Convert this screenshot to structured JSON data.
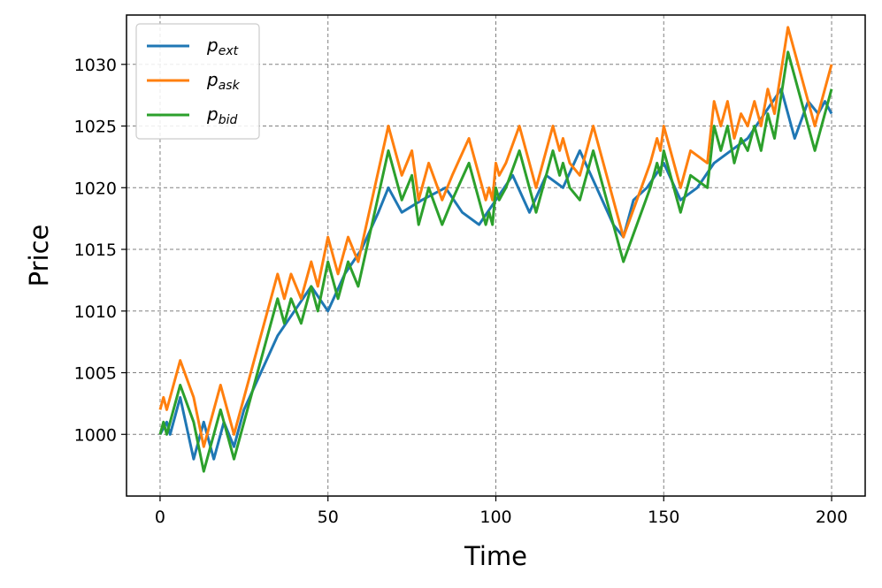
{
  "chart_data": {
    "type": "line",
    "title": "",
    "xlabel": "Time",
    "ylabel": "Price",
    "xlim": [
      -10,
      210
    ],
    "ylim": [
      995,
      1034
    ],
    "xticks": [
      0,
      50,
      100,
      150,
      200
    ],
    "yticks": [
      1000,
      1005,
      1010,
      1015,
      1020,
      1025,
      1030
    ],
    "grid": true,
    "legend": "top-left",
    "series": [
      {
        "name": "p",
        "subscript": "ext",
        "color": "#1f77b4",
        "x": [
          0,
          2,
          3,
          6,
          10,
          13,
          16,
          19,
          22,
          25,
          35,
          40,
          45,
          50,
          55,
          60,
          65,
          68,
          72,
          78,
          85,
          90,
          95,
          100,
          105,
          110,
          115,
          120,
          125,
          130,
          135,
          138,
          141,
          145,
          150,
          155,
          160,
          165,
          170,
          175,
          180,
          185,
          189,
          193,
          196,
          198,
          200
        ],
        "values": [
          1000,
          1001,
          1000,
          1003,
          998,
          1001,
          998,
          1001,
          999,
          1002,
          1008,
          1010,
          1012,
          1010,
          1013,
          1015,
          1018,
          1020,
          1018,
          1019,
          1020,
          1018,
          1017,
          1019,
          1021,
          1018,
          1021,
          1020,
          1023,
          1020,
          1017,
          1016,
          1019,
          1020,
          1022,
          1019,
          1020,
          1022,
          1023,
          1024,
          1026,
          1028,
          1024,
          1027,
          1026,
          1027,
          1026
        ]
      },
      {
        "name": "p",
        "subscript": "ask",
        "color": "#ff7f0e",
        "x": [
          0,
          1,
          2,
          6,
          10,
          13,
          18,
          22,
          35,
          37,
          39,
          42,
          45,
          47,
          50,
          53,
          56,
          59,
          68,
          72,
          75,
          77,
          80,
          84,
          87,
          92,
          97,
          98,
          99,
          100,
          101,
          103,
          107,
          112,
          117,
          119,
          120,
          122,
          125,
          129,
          138,
          146,
          148,
          149,
          150,
          153,
          155,
          158,
          163,
          165,
          167,
          169,
          171,
          173,
          175,
          177,
          179,
          181,
          183,
          187,
          195,
          200
        ],
        "values": [
          1002,
          1003,
          1002,
          1006,
          1003,
          999,
          1004,
          1000,
          1013,
          1011,
          1013,
          1011,
          1014,
          1012,
          1016,
          1013,
          1016,
          1014,
          1025,
          1021,
          1023,
          1019,
          1022,
          1019,
          1021,
          1024,
          1019,
          1020,
          1019,
          1022,
          1021,
          1022,
          1025,
          1020,
          1025,
          1023,
          1024,
          1022,
          1021,
          1025,
          1016,
          1022,
          1024,
          1023,
          1025,
          1022,
          1020,
          1023,
          1022,
          1027,
          1025,
          1027,
          1024,
          1026,
          1025,
          1027,
          1025,
          1028,
          1026,
          1033,
          1025,
          1030
        ]
      },
      {
        "name": "p",
        "subscript": "bid",
        "color": "#2ca02c",
        "x": [
          0,
          1,
          2,
          6,
          10,
          13,
          18,
          22,
          35,
          37,
          39,
          42,
          45,
          47,
          50,
          53,
          56,
          59,
          68,
          72,
          75,
          77,
          80,
          84,
          87,
          92,
          97,
          98,
          99,
          100,
          101,
          103,
          107,
          112,
          117,
          119,
          120,
          122,
          125,
          129,
          138,
          146,
          148,
          149,
          150,
          153,
          155,
          158,
          163,
          165,
          167,
          169,
          171,
          173,
          175,
          177,
          179,
          181,
          183,
          187,
          195,
          200
        ],
        "values": [
          1000,
          1001,
          1000,
          1004,
          1001,
          997,
          1002,
          998,
          1011,
          1009,
          1011,
          1009,
          1012,
          1010,
          1014,
          1011,
          1014,
          1012,
          1023,
          1019,
          1021,
          1017,
          1020,
          1017,
          1019,
          1022,
          1017,
          1018,
          1017,
          1020,
          1019,
          1020,
          1023,
          1018,
          1023,
          1021,
          1022,
          1020,
          1019,
          1023,
          1014,
          1020,
          1022,
          1021,
          1023,
          1020,
          1018,
          1021,
          1020,
          1025,
          1023,
          1025,
          1022,
          1024,
          1023,
          1025,
          1023,
          1026,
          1024,
          1031,
          1023,
          1028
        ]
      }
    ]
  }
}
